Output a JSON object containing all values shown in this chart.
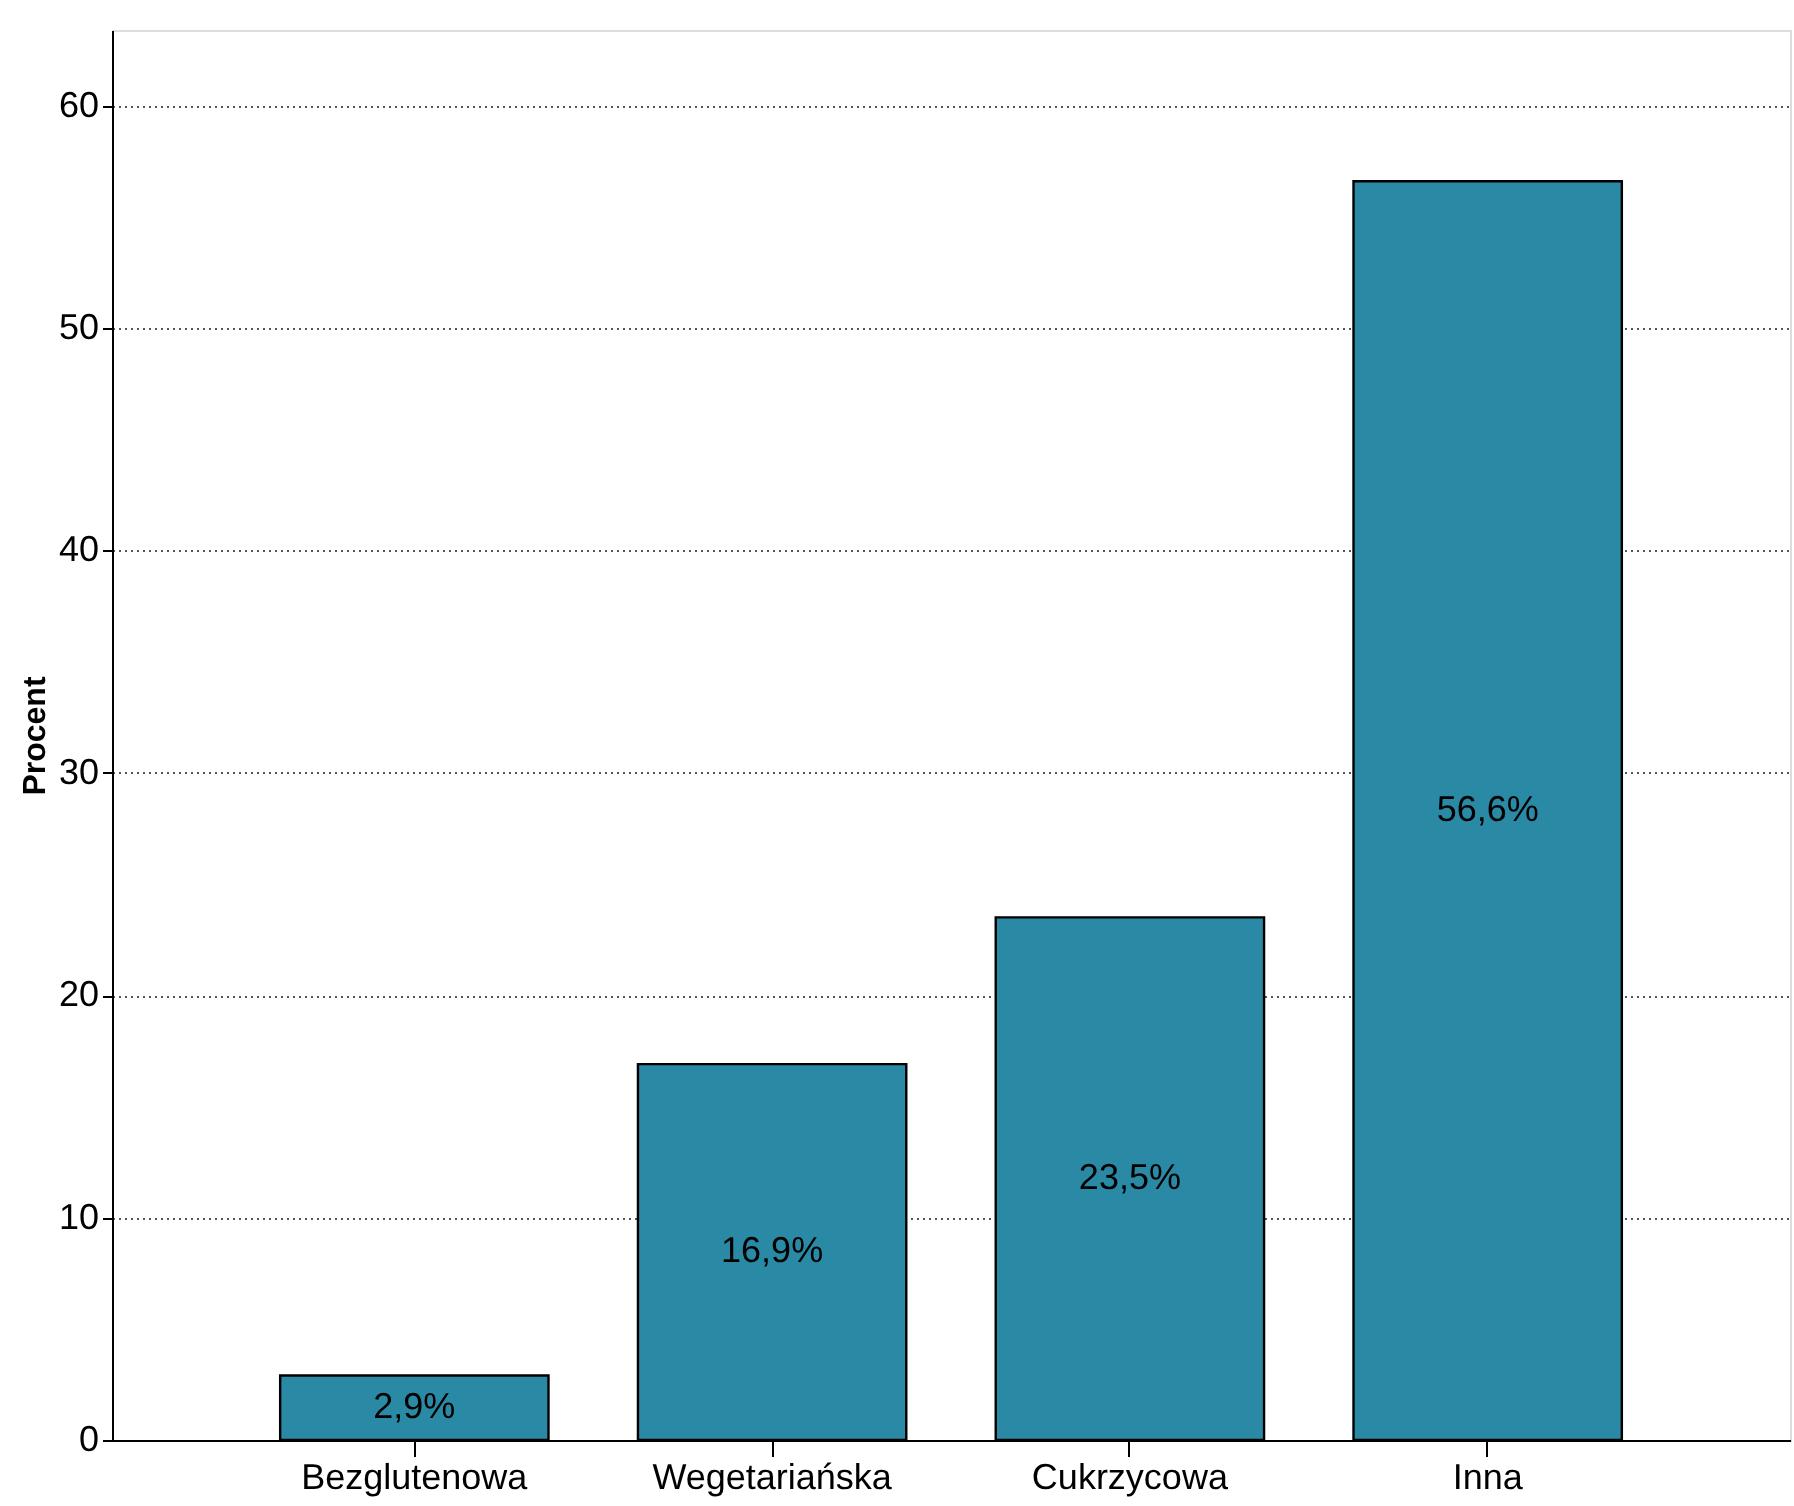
{
  "chart_data": {
    "type": "bar",
    "ylabel": "Procent",
    "categories": [
      "Bezglutenowa",
      "Wegetariańska",
      "Cukrzycowa",
      "Inna"
    ],
    "values": [
      2.9,
      16.9,
      23.5,
      56.6
    ],
    "value_labels": [
      "2,9%",
      "16,9%",
      "23,5%",
      "56,6%"
    ],
    "color": "#2a8aa5",
    "ylim": [
      0,
      63.4
    ],
    "yticks": [
      0,
      10,
      20,
      30,
      40,
      50,
      60
    ],
    "grid": "y"
  }
}
